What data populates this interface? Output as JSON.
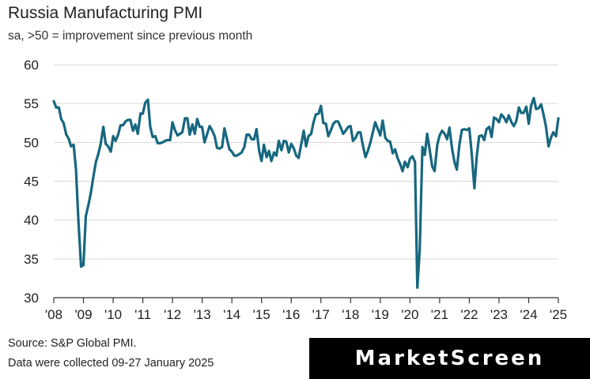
{
  "chart_data": {
    "type": "line",
    "title": "Russia Manufacturing PMI",
    "subtitle": "sa, >50 = improvement since previous month",
    "xlabel": "",
    "ylabel": "",
    "ylim": [
      30,
      60
    ],
    "yticks": [
      30,
      35,
      40,
      45,
      50,
      55,
      60
    ],
    "xlim": [
      2008.0,
      2025.0
    ],
    "xtick_labels": [
      "'08",
      "'09",
      "'10",
      "'11",
      "'12",
      "'13",
      "'14",
      "'15",
      "'16",
      "'17",
      "'18",
      "'19",
      "'20",
      "'21",
      "'22",
      "'23",
      "'24",
      "'25"
    ],
    "grid": "horizontal",
    "series": [
      {
        "name": "Russia Manufacturing PMI",
        "color": "#17677f",
        "x": [
          2008.0,
          2008.08,
          2008.17,
          2008.25,
          2008.33,
          2008.42,
          2008.5,
          2008.58,
          2008.67,
          2008.75,
          2008.83,
          2008.92,
          2009.0,
          2009.08,
          2009.17,
          2009.25,
          2009.33,
          2009.42,
          2009.5,
          2009.58,
          2009.67,
          2009.75,
          2009.83,
          2009.92,
          2010.0,
          2010.08,
          2010.17,
          2010.25,
          2010.33,
          2010.42,
          2010.5,
          2010.58,
          2010.67,
          2010.75,
          2010.83,
          2010.92,
          2011.0,
          2011.08,
          2011.17,
          2011.25,
          2011.33,
          2011.42,
          2011.5,
          2011.58,
          2011.67,
          2011.75,
          2011.83,
          2011.92,
          2012.0,
          2012.08,
          2012.17,
          2012.25,
          2012.33,
          2012.42,
          2012.5,
          2012.58,
          2012.67,
          2012.75,
          2012.83,
          2012.92,
          2013.0,
          2013.08,
          2013.17,
          2013.25,
          2013.33,
          2013.42,
          2013.5,
          2013.58,
          2013.67,
          2013.75,
          2013.83,
          2013.92,
          2014.0,
          2014.08,
          2014.17,
          2014.25,
          2014.33,
          2014.42,
          2014.5,
          2014.58,
          2014.67,
          2014.75,
          2014.83,
          2014.92,
          2015.0,
          2015.08,
          2015.17,
          2015.25,
          2015.33,
          2015.42,
          2015.5,
          2015.58,
          2015.67,
          2015.75,
          2015.83,
          2015.92,
          2016.0,
          2016.08,
          2016.17,
          2016.25,
          2016.33,
          2016.42,
          2016.5,
          2016.58,
          2016.67,
          2016.75,
          2016.83,
          2016.92,
          2017.0,
          2017.08,
          2017.17,
          2017.25,
          2017.33,
          2017.42,
          2017.5,
          2017.58,
          2017.67,
          2017.75,
          2017.83,
          2017.92,
          2018.0,
          2018.08,
          2018.17,
          2018.25,
          2018.33,
          2018.42,
          2018.5,
          2018.58,
          2018.67,
          2018.75,
          2018.83,
          2018.92,
          2019.0,
          2019.08,
          2019.17,
          2019.25,
          2019.33,
          2019.42,
          2019.5,
          2019.58,
          2019.67,
          2019.75,
          2019.83,
          2019.92,
          2020.0,
          2020.08,
          2020.17,
          2020.25,
          2020.33,
          2020.42,
          2020.5,
          2020.58,
          2020.67,
          2020.75,
          2020.83,
          2020.92,
          2021.0,
          2021.08,
          2021.17,
          2021.25,
          2021.33,
          2021.42,
          2021.5,
          2021.58,
          2021.67,
          2021.75,
          2021.83,
          2021.92,
          2022.0,
          2022.08,
          2022.17,
          2022.25,
          2022.33,
          2022.42,
          2022.5,
          2022.58,
          2022.67,
          2022.75,
          2022.83,
          2022.92,
          2023.0,
          2023.08,
          2023.17,
          2023.25,
          2023.33,
          2023.42,
          2023.5,
          2023.58,
          2023.67,
          2023.75,
          2023.83,
          2023.92,
          2024.0,
          2024.08,
          2024.17,
          2024.25,
          2024.33,
          2024.42,
          2024.5,
          2024.58,
          2024.67,
          2024.75,
          2024.83,
          2024.92,
          2025.0
        ],
        "values": [
          55.3,
          54.5,
          54.5,
          53.0,
          52.5,
          51.0,
          50.5,
          49.5,
          49.7,
          46.5,
          40.0,
          34.0,
          34.2,
          40.5,
          42.0,
          43.5,
          45.5,
          47.5,
          48.5,
          49.8,
          52.0,
          49.8,
          49.5,
          48.8,
          50.8,
          50.2,
          51.0,
          52.2,
          52.2,
          52.7,
          52.9,
          52.9,
          51.5,
          52.3,
          51.1,
          53.7,
          53.7,
          55.1,
          55.5,
          52.0,
          50.7,
          50.8,
          49.9,
          49.9,
          50.0,
          50.2,
          50.3,
          50.3,
          52.6,
          51.6,
          50.9,
          51.1,
          51.3,
          53.1,
          53.1,
          51.0,
          52.3,
          51.1,
          53.0,
          52.0,
          52.0,
          50.0,
          51.1,
          52.1,
          51.6,
          50.8,
          49.3,
          49.2,
          49.4,
          51.8,
          50.5,
          49.1,
          48.8,
          48.3,
          48.3,
          48.5,
          48.7,
          49.4,
          51.0,
          51.0,
          50.4,
          50.4,
          51.7,
          48.9,
          47.6,
          49.7,
          48.1,
          48.9,
          47.6,
          48.7,
          48.3,
          50.2,
          49.0,
          50.2,
          50.1,
          48.7,
          49.8,
          49.3,
          48.3,
          48.0,
          49.6,
          51.5,
          49.5,
          50.8,
          51.1,
          52.6,
          53.6,
          53.7,
          54.7,
          52.5,
          52.4,
          50.8,
          51.5,
          52.4,
          52.7,
          52.7,
          51.9,
          51.1,
          51.5,
          52.0,
          52.1,
          50.2,
          50.6,
          51.3,
          51.3,
          49.5,
          48.1,
          48.9,
          50.0,
          51.3,
          52.6,
          51.7,
          50.9,
          52.8,
          50.6,
          50.2,
          50.1,
          48.6,
          49.1,
          48.0,
          47.2,
          46.3,
          47.5,
          46.8,
          47.9,
          48.2,
          47.5,
          31.3,
          36.2,
          49.4,
          48.4,
          51.1,
          48.9,
          46.9,
          46.3,
          49.7,
          50.9,
          51.5,
          51.1,
          50.4,
          51.9,
          49.2,
          47.5,
          46.5,
          49.8,
          51.6,
          51.7,
          51.6,
          51.8,
          48.6,
          44.1,
          48.2,
          50.8,
          50.9,
          50.3,
          51.7,
          52.0,
          50.7,
          53.2,
          53.0,
          52.6,
          53.6,
          53.2,
          52.6,
          53.5,
          52.6,
          52.1,
          52.7,
          54.5,
          53.8,
          53.8,
          54.6,
          52.4,
          54.7,
          55.7,
          54.3,
          54.4,
          54.9,
          53.6,
          52.1,
          49.5,
          50.6,
          51.3,
          50.8,
          53.1
        ]
      }
    ]
  },
  "footer": {
    "source_line": "Source: S&P Global PMI.",
    "date_line": "Data were collected 09-27 January 2025",
    "brand": "MarketScreen"
  }
}
